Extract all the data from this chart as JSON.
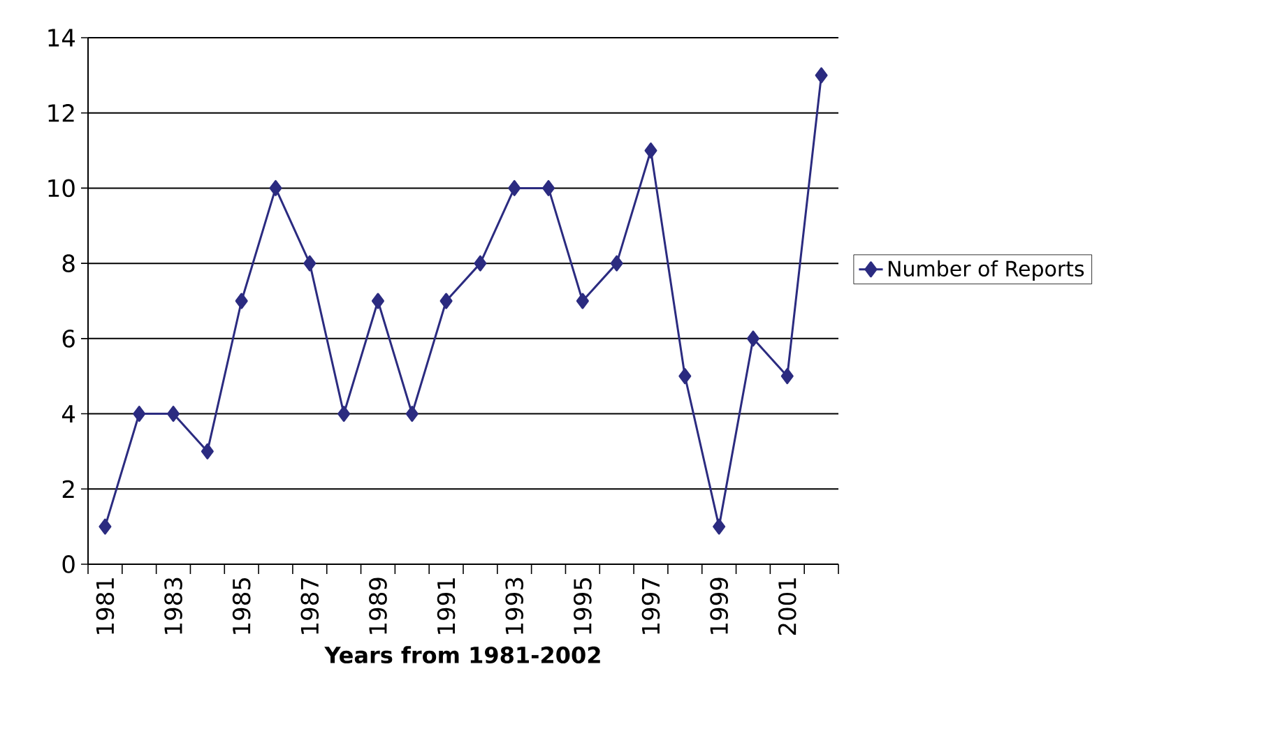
{
  "chart_data": {
    "type": "line",
    "xlabel": "Years  from  1981-2002",
    "categories": [
      "1981",
      null,
      "1983",
      null,
      "1985",
      null,
      "1987",
      null,
      "1989",
      null,
      "1991",
      null,
      "1993",
      null,
      "1995",
      null,
      "1997",
      null,
      "1999",
      null,
      "2001",
      null
    ],
    "series": [
      {
        "name": "Number of Reports",
        "color": "#2b2b80",
        "values": [
          1,
          4,
          4,
          3,
          7,
          10,
          8,
          4,
          7,
          4,
          7,
          8,
          10,
          10,
          7,
          8,
          11,
          5,
          1,
          6,
          5,
          13
        ]
      }
    ],
    "ylim": [
      0,
      14
    ],
    "yticks": [
      0,
      2,
      4,
      6,
      8,
      10,
      12,
      14
    ],
    "grid": "y",
    "legend": "right",
    "marker": "diamond",
    "line_style": "solid"
  }
}
